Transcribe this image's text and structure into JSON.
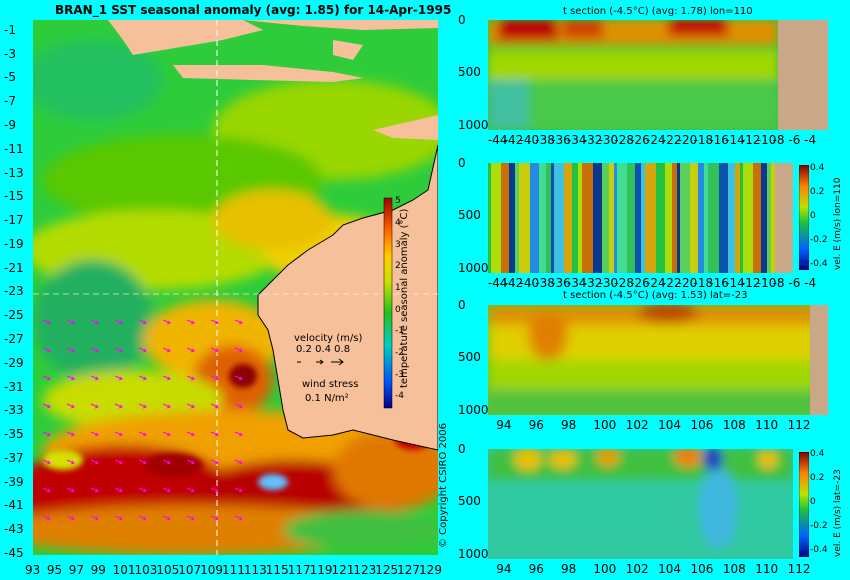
{
  "map": {
    "title": "BRAN_1 SST seasonal anomaly (avg: 1.85) for 14-Apr-1995",
    "lon_ticks": [
      93,
      95,
      97,
      99,
      101,
      103,
      105,
      107,
      109,
      111,
      113,
      115,
      117,
      119,
      121,
      123,
      125,
      127,
      129
    ],
    "lat_ticks": [
      -1,
      -3,
      -5,
      -7,
      -9,
      -11,
      -13,
      -15,
      -17,
      -19,
      -21,
      -23,
      -25,
      -27,
      -29,
      -31,
      -33,
      -35,
      -37,
      -39,
      -41,
      -43,
      -45
    ],
    "colorbar": {
      "label": "temperature seasonal anomaly (°C)",
      "ticks": [
        5,
        4,
        3,
        2,
        1,
        0,
        -1,
        -2,
        -3,
        -4
      ],
      "range": [
        -4.5,
        5.2
      ]
    },
    "legend": {
      "velocity_label": "velocity (m/s)",
      "velocity_values": "0.2 0.4 0.8",
      "wind_label": "wind stress",
      "wind_value": "0.1 N/m²"
    },
    "copyright": "© Copyright CSIRO 2006",
    "section_lon": 110,
    "section_lat": -23
  },
  "panels": [
    {
      "id": "t-lon",
      "title": "t section (-4.5°C) (avg: 1.78) lon=110",
      "x_ticks": [
        -44,
        -42,
        -40,
        -38,
        -36,
        -34,
        -32,
        -30,
        -28,
        -26,
        -24,
        -22,
        -20,
        -18,
        -16,
        -14,
        -12,
        -10,
        -8,
        -6,
        -4
      ],
      "y_ticks": [
        0,
        500,
        1000
      ]
    },
    {
      "id": "vel-lon",
      "title": "",
      "x_ticks": [
        -44,
        -42,
        -40,
        -38,
        -36,
        -34,
        -32,
        -30,
        -28,
        -26,
        -24,
        -22,
        -20,
        -18,
        -16,
        -14,
        -12,
        -10,
        -8,
        -6,
        -4
      ],
      "y_ticks": [
        0,
        500,
        1000
      ],
      "colorbar_ticks": [
        0.4,
        0.2,
        0,
        -0.2,
        -0.4
      ],
      "colorbar_label": "vel. E (m/s) lon=110"
    },
    {
      "id": "t-lat",
      "title": "t section (-4.5°C) (avg: 1.53) lat=-23",
      "x_ticks": [
        94,
        96,
        98,
        100,
        102,
        104,
        106,
        108,
        110,
        112
      ],
      "y_ticks": [
        0,
        500,
        1000
      ]
    },
    {
      "id": "vel-lat",
      "title": "",
      "x_ticks": [
        94,
        96,
        98,
        100,
        102,
        104,
        106,
        108,
        110,
        112
      ],
      "y_ticks": [
        0,
        500,
        1000
      ],
      "colorbar_ticks": [
        0.4,
        0.2,
        0,
        -0.2,
        -0.4
      ],
      "colorbar_label": "vel. E (m/s) lat=-23"
    }
  ],
  "chart_data": [
    {
      "type": "heatmap",
      "title": "BRAN_1 SST seasonal anomaly (avg: 1.85) for 14-Apr-1995",
      "x_range": [
        93,
        130
      ],
      "y_range": [
        -45,
        0
      ],
      "color_range": [
        -4.5,
        5.2
      ]
    },
    {
      "type": "heatmap",
      "title": "t section (-4.5°C) (avg: 1.78) lon=110",
      "x_range": [
        -45,
        -2
      ],
      "y_range": [
        1050,
        0
      ]
    },
    {
      "type": "heatmap",
      "title": "",
      "x_range": [
        -45,
        -2
      ],
      "y_range": [
        1050,
        0
      ],
      "color_range": [
        -0.45,
        0.45
      ]
    },
    {
      "type": "heatmap",
      "title": "t section (-4.5°C) (avg: 1.53) lat=-23",
      "x_range": [
        93,
        114
      ],
      "y_range": [
        1050,
        0
      ]
    },
    {
      "type": "heatmap",
      "title": "",
      "x_range": [
        93,
        114
      ],
      "y_range": [
        1050,
        0
      ],
      "color_range": [
        -0.45,
        0.45
      ]
    }
  ]
}
